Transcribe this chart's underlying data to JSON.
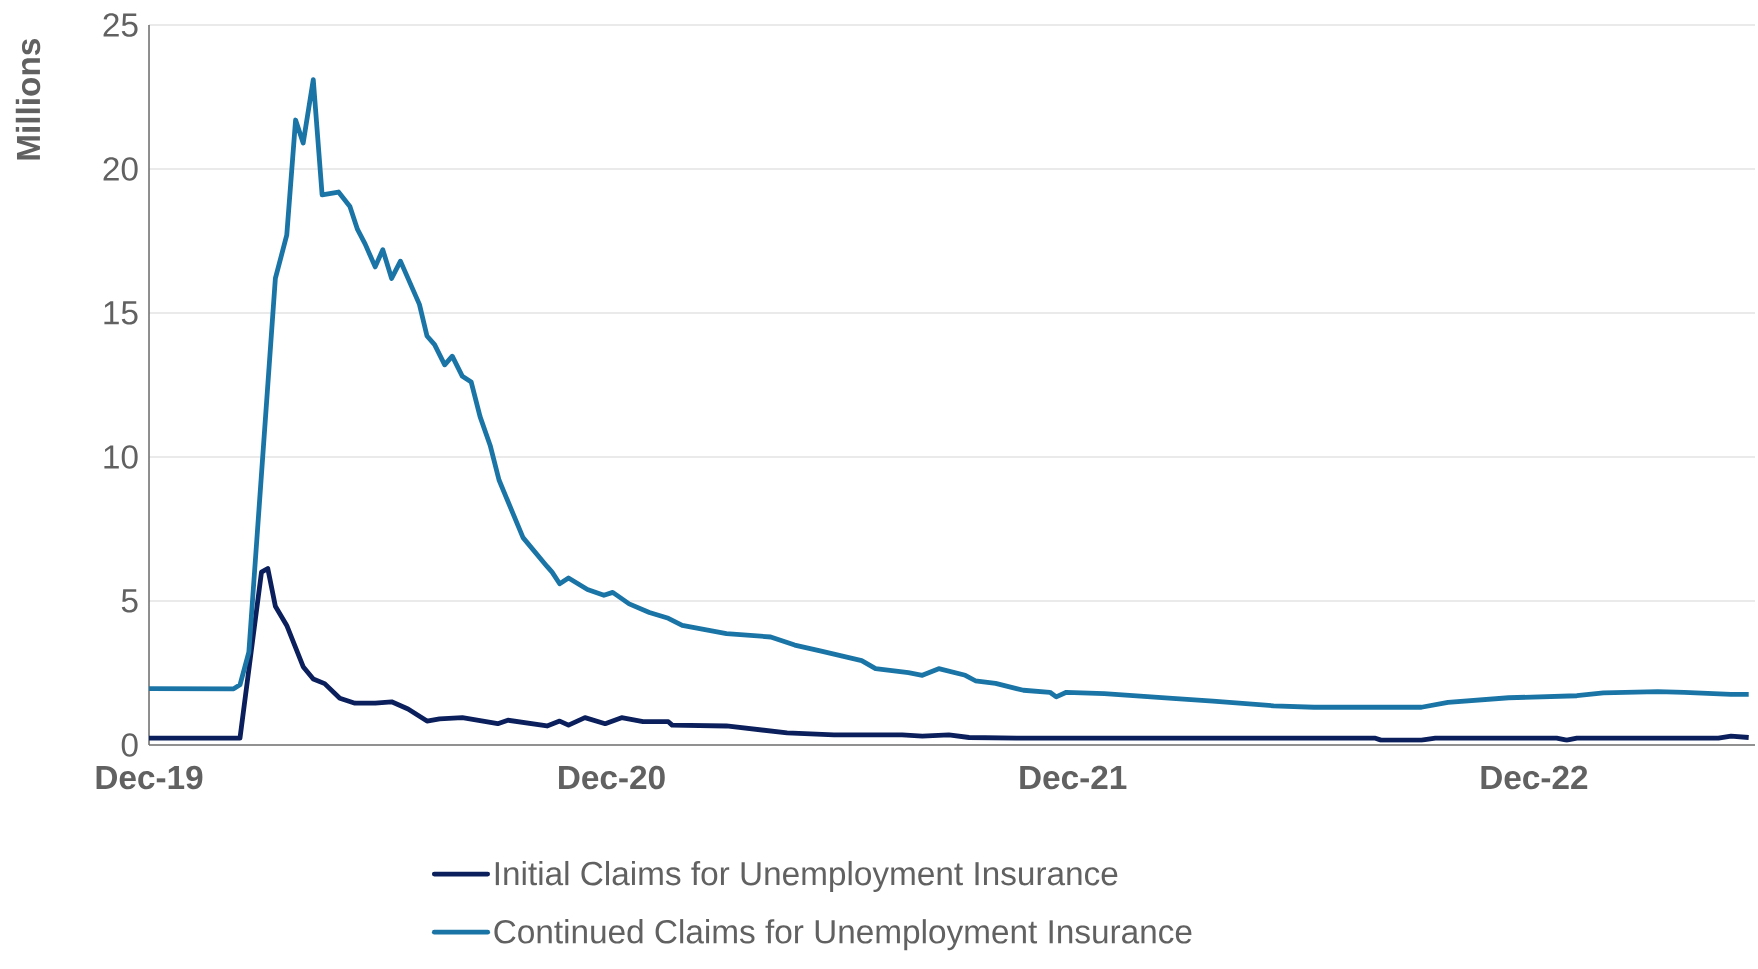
{
  "chart_data": {
    "type": "line",
    "ylabel": "Millions",
    "xlim": [
      "2019-12-01",
      "2023-05-25"
    ],
    "ylim": [
      0,
      25
    ],
    "xticks": [
      {
        "value": "2019-12-01",
        "label": "Dec-19"
      },
      {
        "value": "2020-12-01",
        "label": "Dec-20"
      },
      {
        "value": "2021-12-01",
        "label": "Dec-21"
      },
      {
        "value": "2022-12-01",
        "label": "Dec-22"
      }
    ],
    "yticks": [
      0,
      5,
      10,
      15,
      20,
      25
    ],
    "grid": "y",
    "legend": "bottom",
    "marker": "none",
    "line_style": "solid",
    "series": [
      {
        "name": "Initial Claims for Unemployment Insurance",
        "color": "#0a1f5c",
        "x": [
          "2019-12-01",
          "2020-02-11",
          "2020-02-28",
          "2020-03-04",
          "2020-03-10",
          "2020-03-19",
          "2020-04-01",
          "2020-04-09",
          "2020-04-18",
          "2020-04-30",
          "2020-05-12",
          "2020-05-28",
          "2020-06-10",
          "2020-06-23",
          "2020-07-08",
          "2020-07-18",
          "2020-08-05",
          "2020-09-02",
          "2020-09-10",
          "2020-10-11",
          "2020-10-21",
          "2020-10-28",
          "2020-11-10",
          "2020-11-26",
          "2020-12-09",
          "2020-12-26",
          "2021-01-15",
          "2021-01-18",
          "2021-03-02",
          "2021-04-19",
          "2021-05-26",
          "2021-07-19",
          "2021-08-04",
          "2021-08-25",
          "2021-09-10",
          "2021-10-18",
          "2022-07-28",
          "2022-08-02",
          "2022-09-03",
          "2022-09-14",
          "2022-12-19",
          "2022-12-27",
          "2023-01-04",
          "2023-04-26",
          "2023-05-06",
          "2023-05-20"
        ],
        "values": [
          0.24,
          0.24,
          6.0,
          6.13,
          4.82,
          4.15,
          2.72,
          2.29,
          2.13,
          1.62,
          1.45,
          1.45,
          1.5,
          1.25,
          0.83,
          0.91,
          0.95,
          0.74,
          0.86,
          0.66,
          0.83,
          0.69,
          0.95,
          0.74,
          0.95,
          0.81,
          0.81,
          0.69,
          0.66,
          0.42,
          0.35,
          0.35,
          0.31,
          0.35,
          0.26,
          0.24,
          0.24,
          0.17,
          0.17,
          0.24,
          0.24,
          0.17,
          0.24,
          0.24,
          0.31,
          0.26
        ]
      },
      {
        "name": "Continued Claims for Unemployment Insurance",
        "color": "#1a75a6",
        "x": [
          "2019-12-01",
          "2020-02-06",
          "2020-02-11",
          "2020-02-18",
          "2020-03-10",
          "2020-03-19",
          "2020-03-26",
          "2020-04-01",
          "2020-04-09",
          "2020-04-16",
          "2020-04-29",
          "2020-05-08",
          "2020-05-14",
          "2020-05-20",
          "2020-05-28",
          "2020-06-03",
          "2020-06-10",
          "2020-06-17",
          "2020-07-02",
          "2020-07-08",
          "2020-07-14",
          "2020-07-22",
          "2020-07-28",
          "2020-08-05",
          "2020-08-12",
          "2020-08-19",
          "2020-08-27",
          "2020-09-03",
          "2020-09-22",
          "2020-10-11",
          "2020-10-15",
          "2020-10-21",
          "2020-10-28",
          "2020-11-12",
          "2020-11-25",
          "2020-12-02",
          "2020-12-15",
          "2020-12-31",
          "2021-01-15",
          "2021-01-26",
          "2021-03-02",
          "2021-04-06",
          "2021-04-25",
          "2021-05-16",
          "2021-06-17",
          "2021-06-28",
          "2021-07-24",
          "2021-08-04",
          "2021-08-17",
          "2021-09-07",
          "2021-09-15",
          "2021-10-01",
          "2021-10-23",
          "2021-11-13",
          "2021-11-18",
          "2021-11-26",
          "2021-12-26",
          "2022-02-18",
          "2022-03-22",
          "2022-05-09",
          "2022-06-10",
          "2022-07-28",
          "2022-09-03",
          "2022-09-24",
          "2022-11-11",
          "2023-01-04",
          "2023-01-25",
          "2023-03-09",
          "2023-03-30",
          "2023-05-06",
          "2023-05-20"
        ],
        "values": [
          1.96,
          1.95,
          2.09,
          3.22,
          16.2,
          17.7,
          21.7,
          20.9,
          23.1,
          19.1,
          19.2,
          18.7,
          17.9,
          17.4,
          16.6,
          17.2,
          16.2,
          16.8,
          15.3,
          14.2,
          13.9,
          13.2,
          13.5,
          12.8,
          12.6,
          11.4,
          10.4,
          9.2,
          7.2,
          6.2,
          6.0,
          5.6,
          5.8,
          5.4,
          5.2,
          5.3,
          4.9,
          4.6,
          4.4,
          4.15,
          3.87,
          3.75,
          3.47,
          3.26,
          2.93,
          2.65,
          2.51,
          2.42,
          2.65,
          2.42,
          2.23,
          2.14,
          1.9,
          1.83,
          1.67,
          1.83,
          1.78,
          1.62,
          1.52,
          1.36,
          1.31,
          1.31,
          1.31,
          1.48,
          1.64,
          1.71,
          1.81,
          1.85,
          1.83,
          1.76,
          1.76
        ]
      }
    ]
  }
}
